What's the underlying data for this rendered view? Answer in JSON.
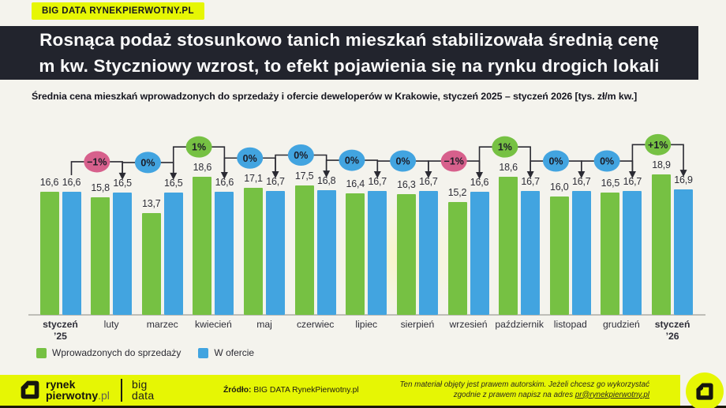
{
  "page": {
    "badge": "BIG DATA RYNEKPIERWOTNY.PL",
    "title_line1": "Rosnąca podaż stosunkowo tanich mieszkań stabilizowała średnią cenę",
    "title_line2": "m kw. Styczniowy wzrost, to efekt pojawienia się na rynku drogich lokali",
    "subtitle": "Średnia cena mieszkań wprowadzonych do sprzedaży i ofercie deweloperów w Krakowie, styczeń 2025 – styczeń 2026 [tys. zł/m kw.]"
  },
  "chart_data": {
    "type": "bar",
    "title": "Średnia cena mieszkań wprowadzonych do sprzedaży i ofercie deweloperów w Krakowie",
    "period": "styczeń 2025 – styczeń 2026",
    "unit": "tys. zł/m kw.",
    "ylim": [
      0,
      20
    ],
    "grid": false,
    "legend_position": "bottom-left",
    "categories": [
      {
        "label": "styczeń",
        "sub": "’25",
        "bold": true
      },
      {
        "label": "luty"
      },
      {
        "label": "marzec"
      },
      {
        "label": "kwiecień"
      },
      {
        "label": "maj"
      },
      {
        "label": "czerwiec"
      },
      {
        "label": "lipiec"
      },
      {
        "label": "sierpień"
      },
      {
        "label": "wrzesień"
      },
      {
        "label": "październik"
      },
      {
        "label": "listopad"
      },
      {
        "label": "grudzień"
      },
      {
        "label": "styczeń",
        "sub": "’26",
        "bold": true
      }
    ],
    "series": [
      {
        "name": "Wprowadzonych do sprzedaży",
        "color": "#76c143",
        "values": [
          16.6,
          15.8,
          13.7,
          18.6,
          17.1,
          17.5,
          16.4,
          16.3,
          15.2,
          18.6,
          16.0,
          16.5,
          18.9
        ]
      },
      {
        "name": "W ofercie",
        "color": "#42a4e0",
        "values": [
          16.6,
          16.5,
          16.5,
          16.6,
          16.7,
          16.8,
          16.7,
          16.7,
          16.6,
          16.7,
          16.7,
          16.7,
          16.9
        ]
      }
    ],
    "annotations": [
      {
        "index": 1,
        "label": "−1%",
        "color": "#d7608c"
      },
      {
        "index": 2,
        "label": "0%",
        "color": "#42a4e0"
      },
      {
        "index": 3,
        "label": "1%",
        "color": "#76c143"
      },
      {
        "index": 4,
        "label": "0%",
        "color": "#42a4e0"
      },
      {
        "index": 5,
        "label": "0%",
        "color": "#42a4e0"
      },
      {
        "index": 6,
        "label": "0%",
        "color": "#42a4e0"
      },
      {
        "index": 7,
        "label": "0%",
        "color": "#42a4e0"
      },
      {
        "index": 8,
        "label": "−1%",
        "color": "#d7608c"
      },
      {
        "index": 9,
        "label": "1%",
        "color": "#76c143"
      },
      {
        "index": 10,
        "label": "0%",
        "color": "#42a4e0"
      },
      {
        "index": 11,
        "label": "0%",
        "color": "#42a4e0"
      },
      {
        "index": 12,
        "label": "+1%",
        "color": "#76c143"
      }
    ]
  },
  "footer": {
    "brand": {
      "line1": "rynek",
      "line2_bold": "pierwotny",
      "line2_suffix": ".pl"
    },
    "bigdata": {
      "line1": "big",
      "line2": "data"
    },
    "source_label": "Źródło:",
    "source_value": " BIG DATA RynekPierwotny.pl",
    "rights_line1": "Ten materiał objęty jest prawem autorskim. Jeżeli chcesz go wykorzystać",
    "rights_line2_prefix": "zgodnie z prawem napisz na adres ",
    "rights_email": "pr@rynekpierwotny.pl"
  }
}
